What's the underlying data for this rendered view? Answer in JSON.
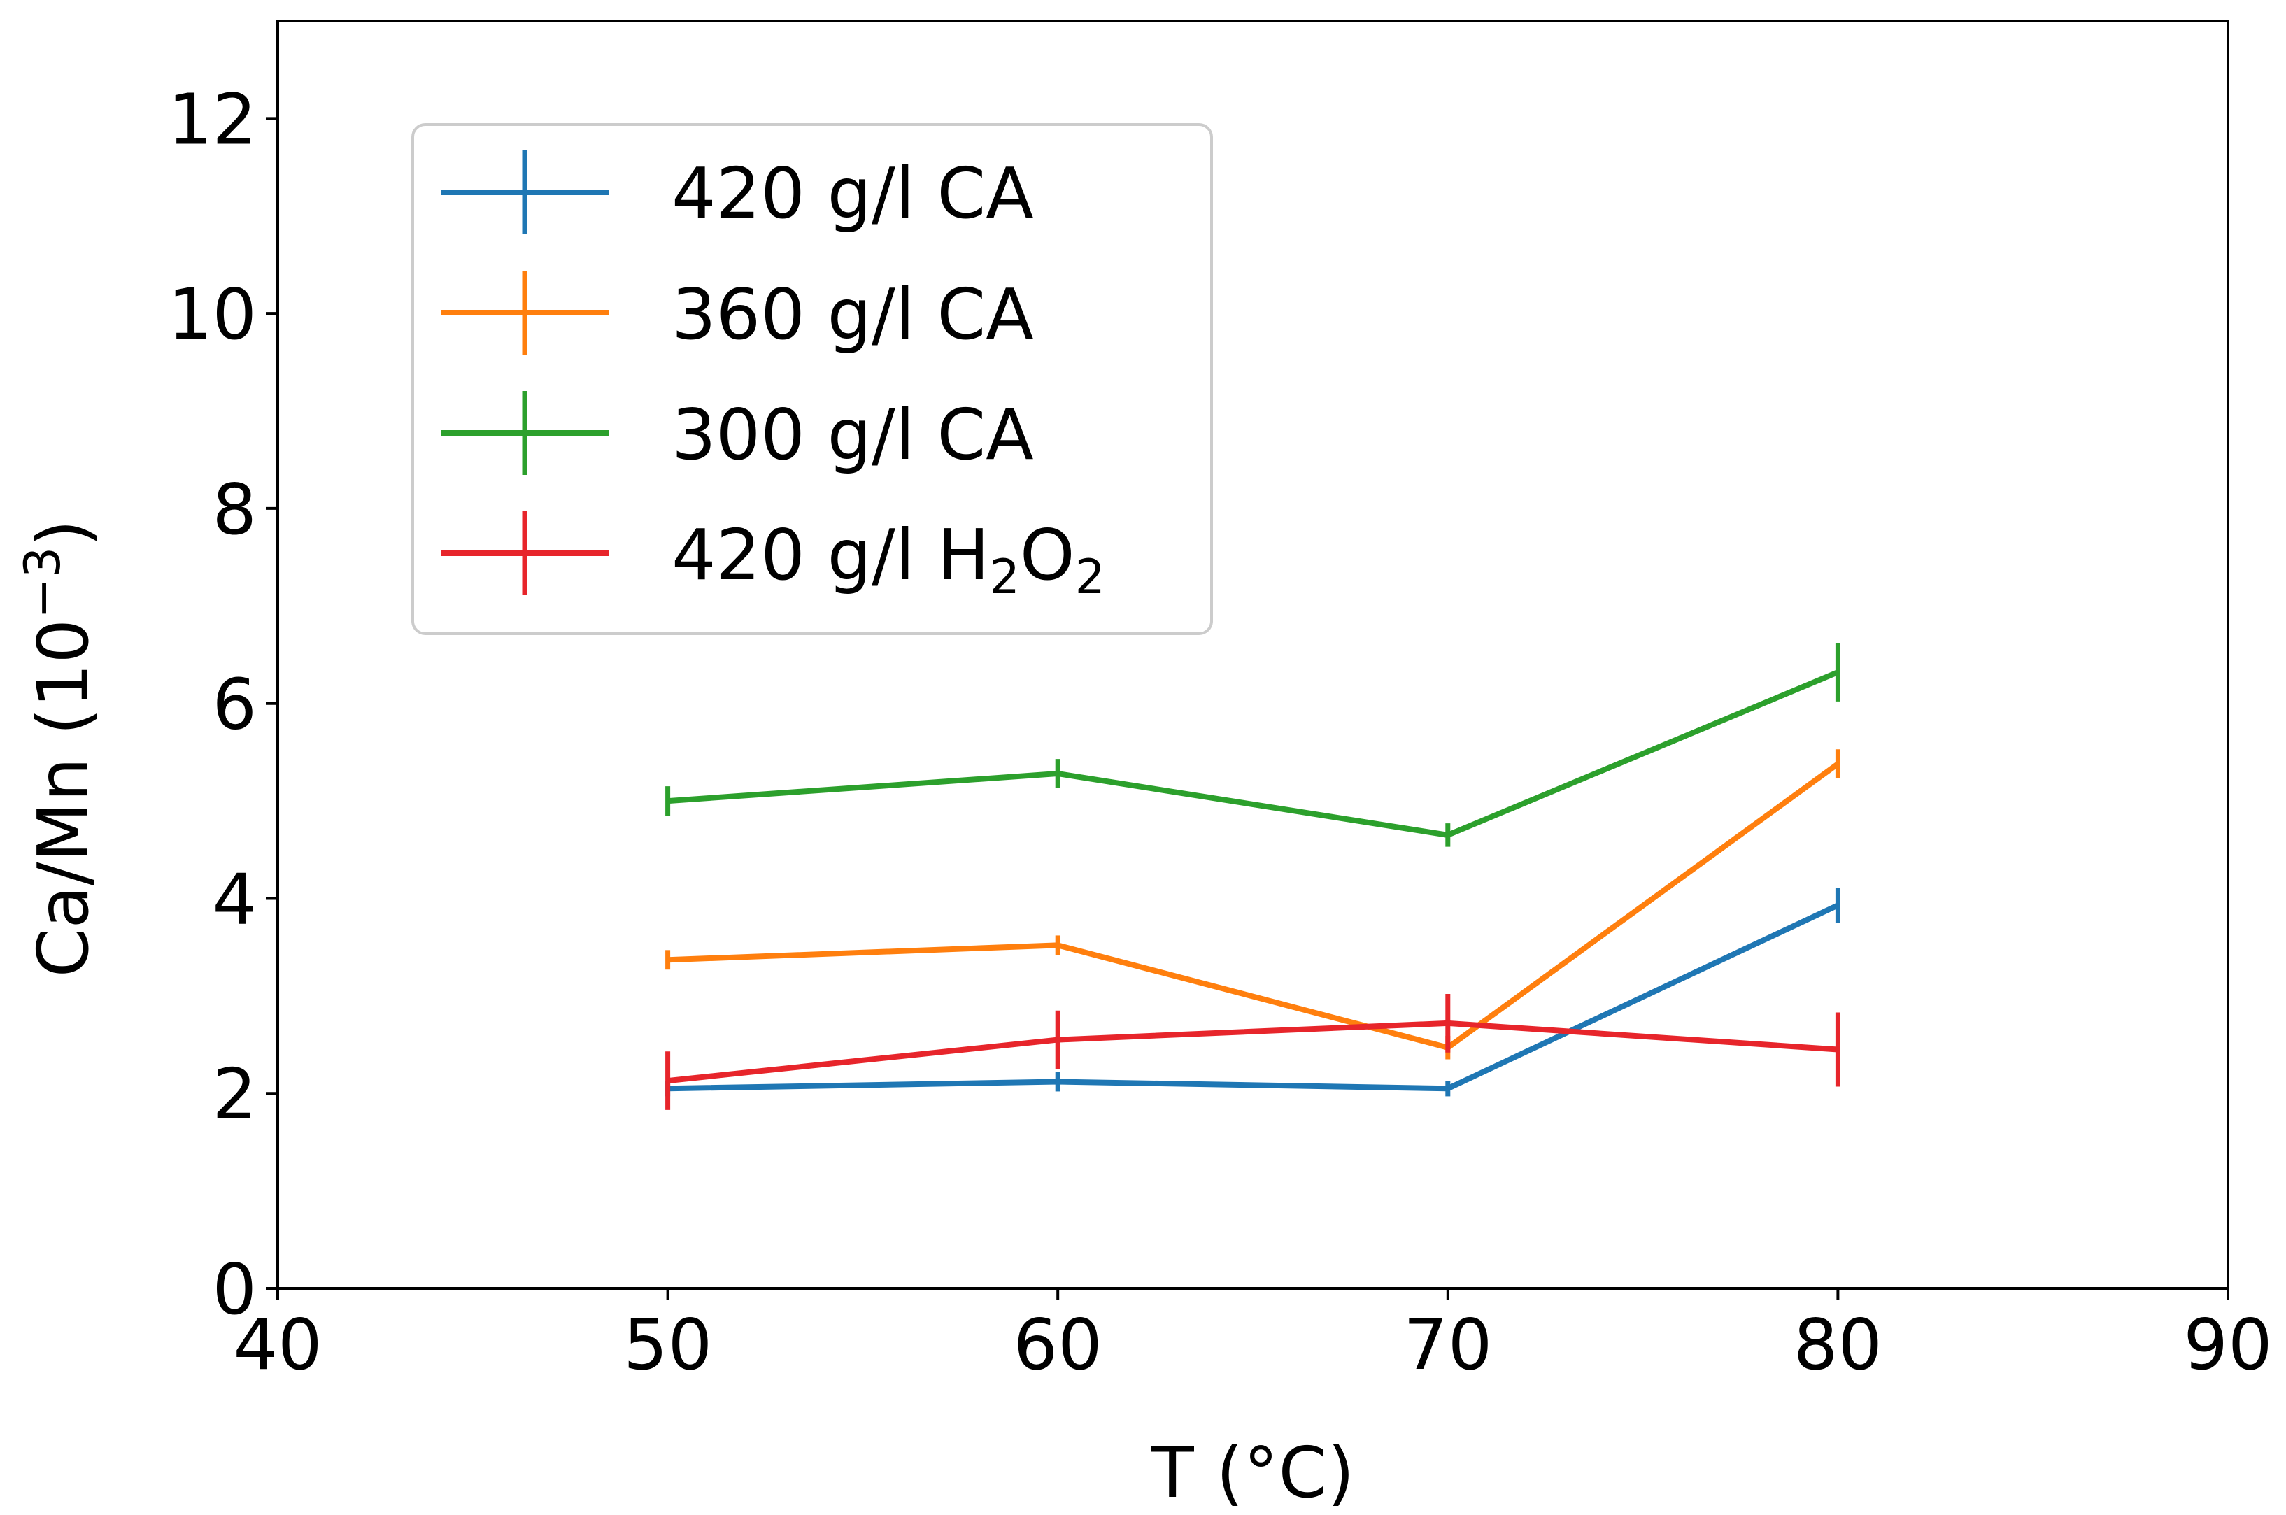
{
  "chart_data": {
    "type": "line",
    "error_bars": true,
    "xlabel": "T (°C)",
    "ylabel": "Ca/Mn (10⁻³)",
    "ylabel_base": "Ca/Mn (10",
    "ylabel_exponent": "−3",
    "ylabel_close": ")",
    "xlim": [
      40,
      90
    ],
    "ylim": [
      0,
      13
    ],
    "xticks": [
      40,
      50,
      60,
      70,
      80,
      90
    ],
    "yticks": [
      0,
      2,
      4,
      6,
      8,
      10,
      12
    ],
    "grid": false,
    "legend_position": "top-left",
    "x": [
      50,
      60,
      70,
      80
    ],
    "series": [
      {
        "name": "420 g/l CA",
        "label_text": "420 g/l CA",
        "color": "#1f77b4",
        "values": [
          2.05,
          2.12,
          2.05,
          3.93
        ],
        "errors": [
          0.08,
          0.1,
          0.08,
          0.18
        ]
      },
      {
        "name": "360 g/l CA",
        "label_text": "360 g/l CA",
        "color": "#ff7f0e",
        "values": [
          3.37,
          3.52,
          2.47,
          5.38
        ],
        "errors": [
          0.1,
          0.1,
          0.12,
          0.15
        ]
      },
      {
        "name": "300 g/l CA",
        "label_text": "300 g/l CA",
        "color": "#2ca02c",
        "values": [
          5.0,
          5.28,
          4.65,
          6.32
        ],
        "errors": [
          0.15,
          0.15,
          0.12,
          0.3
        ]
      },
      {
        "name": "420 g/l H2O2",
        "label_base": "420 g/l H",
        "label_sub1": "2",
        "label_mid": "O",
        "label_sub2": "2",
        "color": "#e7252b",
        "values": [
          2.13,
          2.55,
          2.72,
          2.45
        ],
        "errors": [
          0.3,
          0.3,
          0.3,
          0.38
        ]
      }
    ]
  }
}
